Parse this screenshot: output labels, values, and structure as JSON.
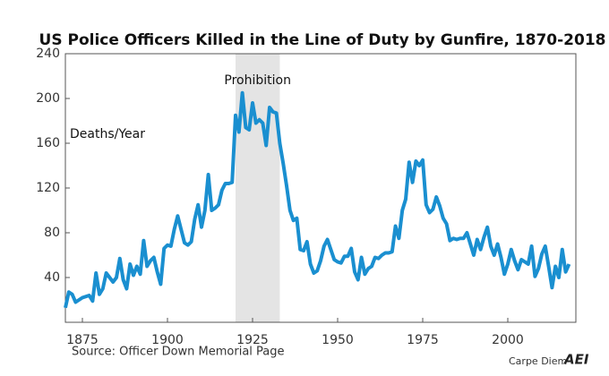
{
  "chart_data": {
    "type": "line",
    "title": "US Police Officers Killed in the Line of Duty by Gunfire, 1870-2018",
    "y_annotation": "Deaths/Year",
    "source": "Source: Officer Down Memorial Page",
    "credit": "Carpe Diem",
    "logo": "AEI",
    "shade": {
      "x": [
        1920,
        1933
      ],
      "label": "Prohibition",
      "color": "#e4e4e4"
    },
    "color": "#1a8fd0",
    "xlim": [
      1870,
      2020
    ],
    "xticks": [
      1875,
      1900,
      1925,
      1950,
      1975,
      2000
    ],
    "ylim": [
      0,
      240
    ],
    "yticks": [
      40,
      80,
      120,
      160,
      200,
      240
    ],
    "x": [
      1870,
      1871,
      1872,
      1873,
      1874,
      1875,
      1876,
      1877,
      1878,
      1879,
      1880,
      1881,
      1882,
      1883,
      1884,
      1885,
      1886,
      1887,
      1888,
      1889,
      1890,
      1891,
      1892,
      1893,
      1894,
      1895,
      1896,
      1897,
      1898,
      1899,
      1900,
      1901,
      1902,
      1903,
      1904,
      1905,
      1906,
      1907,
      1908,
      1909,
      1910,
      1911,
      1912,
      1913,
      1914,
      1915,
      1916,
      1917,
      1918,
      1919,
      1920,
      1921,
      1922,
      1923,
      1924,
      1925,
      1926,
      1927,
      1928,
      1929,
      1930,
      1931,
      1932,
      1933,
      1934,
      1935,
      1936,
      1937,
      1938,
      1939,
      1940,
      1941,
      1942,
      1943,
      1944,
      1945,
      1946,
      1947,
      1948,
      1949,
      1950,
      1951,
      1952,
      1953,
      1954,
      1955,
      1956,
      1957,
      1958,
      1959,
      1960,
      1961,
      1962,
      1963,
      1964,
      1965,
      1966,
      1967,
      1968,
      1969,
      1970,
      1971,
      1972,
      1973,
      1974,
      1975,
      1976,
      1977,
      1978,
      1979,
      1980,
      1981,
      1982,
      1983,
      1984,
      1985,
      1986,
      1987,
      1988,
      1989,
      1990,
      1991,
      1992,
      1993,
      1994,
      1995,
      1996,
      1997,
      1998,
      1999,
      2000,
      2001,
      2002,
      2003,
      2004,
      2005,
      2006,
      2007,
      2008,
      2009,
      2010,
      2011,
      2012,
      2013,
      2014,
      2015,
      2016,
      2017,
      2018
    ],
    "values": [
      13,
      27,
      25,
      18,
      20,
      22,
      23,
      24,
      19,
      44,
      25,
      30,
      44,
      40,
      36,
      40,
      57,
      38,
      30,
      52,
      42,
      50,
      43,
      73,
      50,
      55,
      58,
      45,
      34,
      66,
      69,
      68,
      83,
      95,
      83,
      71,
      69,
      72,
      92,
      105,
      85,
      100,
      132,
      100,
      102,
      105,
      118,
      124,
      124,
      125,
      185,
      170,
      205,
      174,
      172,
      196,
      178,
      181,
      178,
      158,
      192,
      188,
      187,
      160,
      142,
      122,
      100,
      91,
      93,
      65,
      64,
      72,
      52,
      44,
      46,
      55,
      68,
      74,
      65,
      56,
      54,
      53,
      59,
      59,
      66,
      45,
      38,
      58,
      43,
      48,
      50,
      58,
      57,
      60,
      62,
      62,
      63,
      86,
      75,
      100,
      110,
      143,
      125,
      144,
      140,
      145,
      105,
      98,
      101,
      112,
      104,
      93,
      88,
      73,
      75,
      74,
      75,
      75,
      80,
      70,
      60,
      74,
      65,
      76,
      85,
      68,
      60,
      70,
      58,
      43,
      52,
      65,
      55,
      47,
      56,
      54,
      52,
      68,
      41,
      48,
      61,
      68,
      50,
      31,
      50,
      40,
      65,
      45,
      52
    ]
  }
}
